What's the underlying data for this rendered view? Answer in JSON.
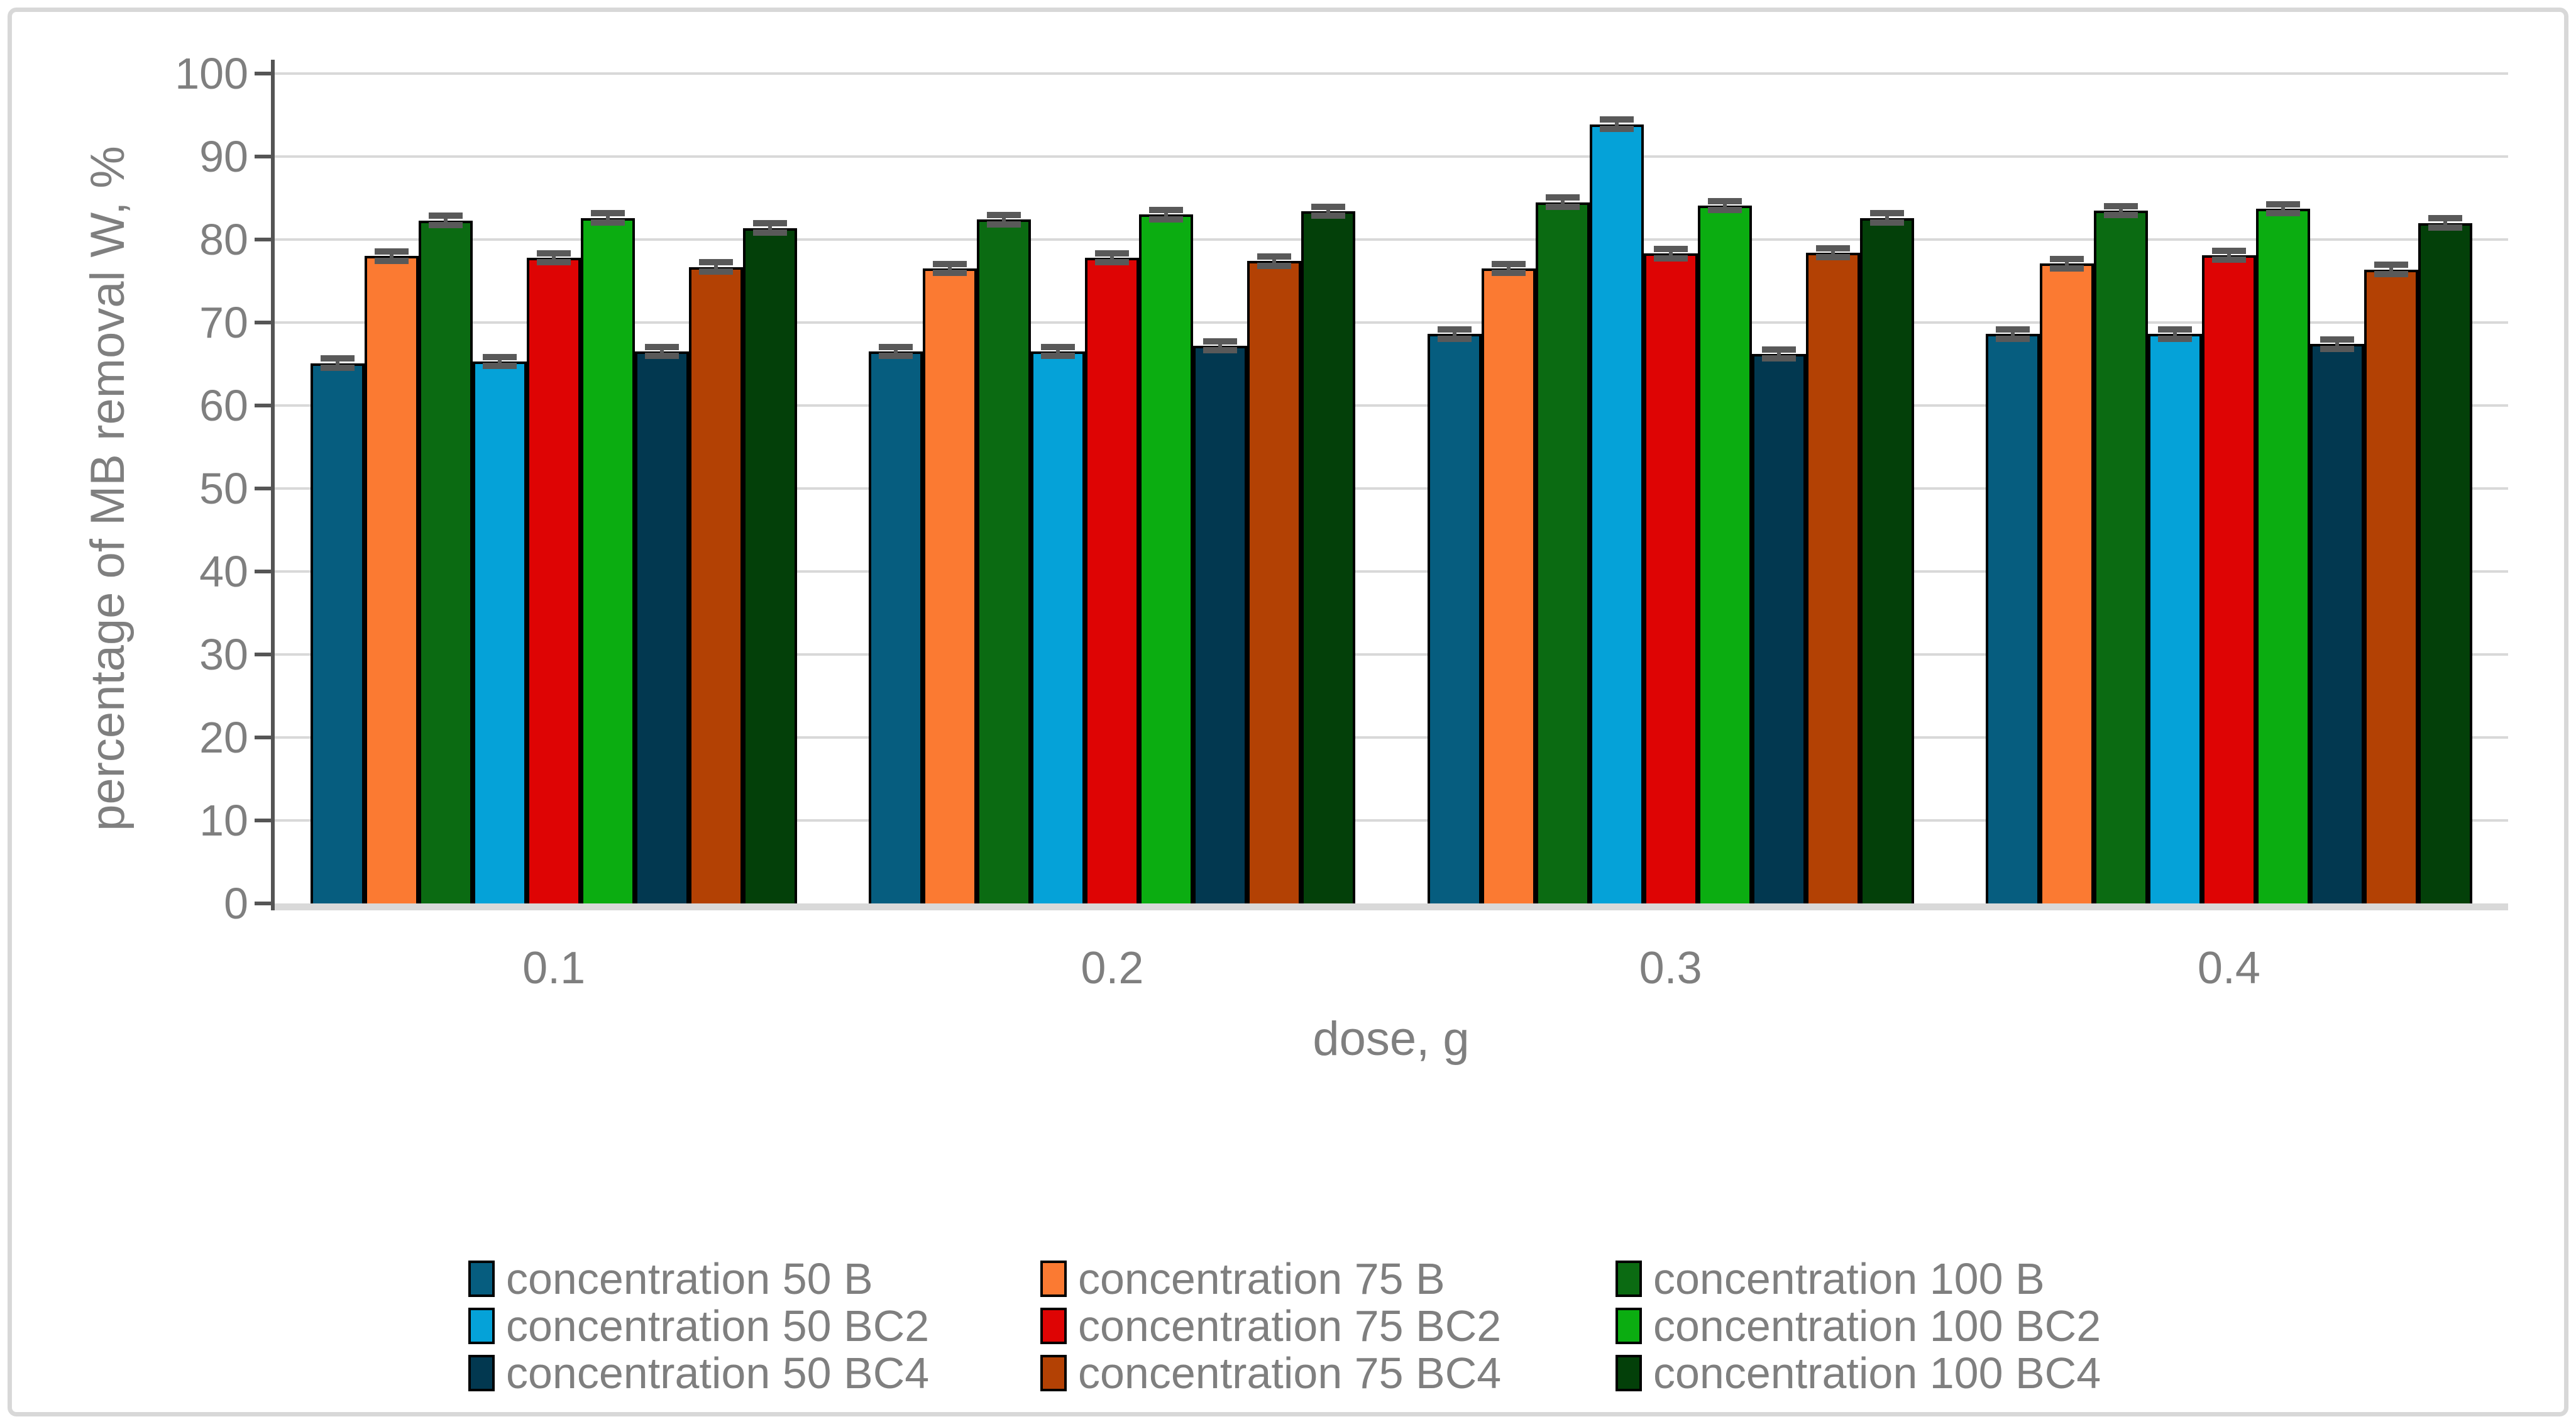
{
  "chart_data": {
    "type": "bar",
    "title": "",
    "xlabel": "dose, g",
    "ylabel": "percentage of MB removal W, %",
    "categories": [
      "0.1",
      "0.2",
      "0.3",
      "0.4"
    ],
    "series": [
      {
        "name": "concentration 50 B",
        "color": "#065d7f",
        "values": [
          65.1,
          66.5,
          68.6,
          68.6
        ]
      },
      {
        "name": "concentration 75 B",
        "color": "#fb7a32",
        "values": [
          78.0,
          76.5,
          76.5,
          77.1
        ]
      },
      {
        "name": "concentration 100 B",
        "color": "#0b6b12",
        "values": [
          82.3,
          82.4,
          84.5,
          83.5
        ]
      },
      {
        "name": "concentration 50 BC2",
        "color": "#05a2d8",
        "values": [
          65.3,
          66.5,
          93.9,
          68.6
        ]
      },
      {
        "name": "concentration 75 BC2",
        "color": "#de0404",
        "values": [
          77.8,
          77.8,
          78.3,
          78.1
        ]
      },
      {
        "name": "concentration 100 BC2",
        "color": "#0bad11",
        "values": [
          82.6,
          83.0,
          84.1,
          83.7
        ]
      },
      {
        "name": "concentration 50 BC4",
        "color": "#023850",
        "values": [
          66.5,
          67.2,
          66.2,
          67.4
        ]
      },
      {
        "name": "concentration 75 BC4",
        "color": "#b34104",
        "values": [
          76.7,
          77.4,
          78.4,
          76.4
        ]
      },
      {
        "name": "concentration 100 BC4",
        "color": "#034009",
        "values": [
          81.4,
          83.4,
          82.6,
          82.0
        ]
      }
    ],
    "error_bar": 0.55,
    "ylim": [
      0,
      100
    ],
    "ytick_step": 10,
    "yticks": [
      "0",
      "10",
      "20",
      "30",
      "40",
      "50",
      "60",
      "70",
      "80",
      "90",
      "100"
    ],
    "grid": true,
    "legend_position": "bottom",
    "legend_rows": [
      [
        "concentration 50 B",
        "concentration 75 B",
        "concentration 100 B"
      ],
      [
        "concentration 50 BC2",
        "concentration 75 BC2",
        "concentration 100 BC2"
      ],
      [
        "concentration 50 BC4",
        "concentration 75 BC4",
        "concentration 100 BC4"
      ]
    ],
    "colors": {
      "grid": "#d9d9d9",
      "axis": "#555555",
      "text": "#7f7f7f",
      "error": "#595959",
      "bar_border": "#000000",
      "frame": "#d8d8d8"
    }
  }
}
